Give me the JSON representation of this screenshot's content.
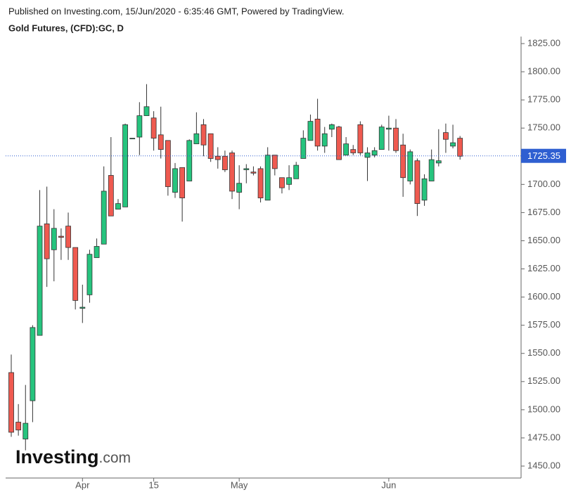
{
  "chart_data": {
    "type": "candlestick",
    "subtitle": "Published on Investing.com, 15/Jun/2020 - 6:35:46 GMT, Powered by TradingView.",
    "title": "Gold Futures, (CFD):GC, D",
    "watermark_brand": "Investing",
    "watermark_domain": ".com",
    "categories": [
      null,
      null,
      null,
      null,
      null,
      null,
      null,
      null,
      null,
      null,
      "Apr",
      null,
      null,
      null,
      null,
      null,
      null,
      null,
      null,
      null,
      "15",
      null,
      null,
      null,
      null,
      null,
      null,
      null,
      null,
      null,
      null,
      null,
      "May",
      null,
      null,
      null,
      null,
      null,
      null,
      null,
      null,
      null,
      null,
      null,
      null,
      null,
      null,
      null,
      null,
      null,
      null,
      null,
      null,
      "Jun",
      null,
      null,
      null,
      null,
      null,
      null,
      null,
      null,
      null,
      null
    ],
    "open": [
      1533,
      1489,
      1474,
      1508,
      1566,
      1665,
      1642,
      1654,
      1663,
      1644,
      1590,
      1602,
      1635,
      1647,
      1708,
      1678,
      1680,
      1741,
      1742,
      1761,
      1759,
      1744,
      1739,
      1693,
      1715,
      1703,
      1736,
      1753,
      1745,
      1725,
      1725,
      1728,
      1693,
      1713,
      1711,
      1714,
      1686,
      1726,
      1706,
      1700,
      1705,
      1723,
      1739,
      1758,
      1734,
      1749,
      1751,
      1726,
      1731,
      1753,
      1724,
      1726,
      1731,
      1749,
      1750,
      1735,
      1703,
      1721,
      1686,
      1703,
      1719,
      1746,
      1734,
      1741
    ],
    "high": [
      1549,
      1505,
      1522,
      1575,
      1695,
      1698,
      1678,
      1661,
      1675,
      1644,
      1611,
      1642,
      1652,
      1716,
      1742,
      1687,
      1754,
      1741,
      1773,
      1789,
      1765,
      1769,
      1739,
      1719,
      1715,
      1740,
      1764,
      1758,
      1745,
      1733,
      1730,
      1730,
      1717,
      1718,
      1716,
      1716,
      1733,
      1726,
      1706,
      1717,
      1720,
      1748,
      1762,
      1776,
      1751,
      1754,
      1752,
      1742,
      1735,
      1756,
      1733,
      1733,
      1753,
      1761,
      1758,
      1745,
      1731,
      1723,
      1709,
      1731,
      1749,
      1754,
      1753,
      1743
    ],
    "low": [
      1476,
      1477,
      1464,
      1489,
      1566,
      1609,
      1614,
      1633,
      1633,
      1589,
      1577,
      1595,
      1635,
      1647,
      1672,
      1678,
      1680,
      1741,
      1726,
      1761,
      1730,
      1723,
      1690,
      1688,
      1667,
      1703,
      1736,
      1725,
      1720,
      1714,
      1711,
      1687,
      1678,
      1701,
      1708,
      1684,
      1686,
      1708,
      1692,
      1695,
      1705,
      1723,
      1739,
      1730,
      1728,
      1742,
      1722,
      1726,
      1726,
      1726,
      1703,
      1724,
      1731,
      1730,
      1728,
      1689,
      1700,
      1672,
      1681,
      1703,
      1716,
      1728,
      1732,
      1722
    ],
    "close": [
      1480,
      1482,
      1488,
      1573,
      1663,
      1634,
      1661,
      1653,
      1644,
      1597,
      1591,
      1638,
      1645,
      1694,
      1672,
      1683,
      1753,
      1741,
      1761,
      1769,
      1741,
      1731,
      1698,
      1714,
      1688,
      1739,
      1745,
      1735,
      1723,
      1722,
      1713,
      1694,
      1701,
      1714,
      1710,
      1688,
      1726,
      1714,
      1697,
      1706,
      1717,
      1741,
      1756,
      1734,
      1745,
      1753,
      1722,
      1736,
      1728,
      1728,
      1728,
      1730,
      1751,
      1750,
      1730,
      1706,
      1729,
      1683,
      1705,
      1722,
      1721,
      1740,
      1737,
      1725
    ],
    "up_color": "#26c47e",
    "down_color": "#ef5a50",
    "last_price": 1725.35,
    "last_price_color": "#2f5fd1",
    "ylim": [
      1450,
      1825
    ],
    "yticks": [
      {
        "value": 1450,
        "label": "1450.00"
      },
      {
        "value": 1475,
        "label": "1475.00"
      },
      {
        "value": 1500,
        "label": "1500.00"
      },
      {
        "value": 1525,
        "label": "1525.00"
      },
      {
        "value": 1550,
        "label": "1550.00"
      },
      {
        "value": 1575,
        "label": "1575.00"
      },
      {
        "value": 1600,
        "label": "1600.00"
      },
      {
        "value": 1625,
        "label": "1625.00"
      },
      {
        "value": 1650,
        "label": "1650.00"
      },
      {
        "value": 1675,
        "label": "1675.00"
      },
      {
        "value": 1700,
        "label": "1700.00"
      },
      {
        "value": 1725,
        "label": "1725.00"
      },
      {
        "value": 1750,
        "label": "1750.00"
      },
      {
        "value": 1775,
        "label": "1775.00"
      },
      {
        "value": 1800,
        "label": "1800.00"
      },
      {
        "value": 1825,
        "label": "1825.00"
      }
    ],
    "grid": false
  }
}
